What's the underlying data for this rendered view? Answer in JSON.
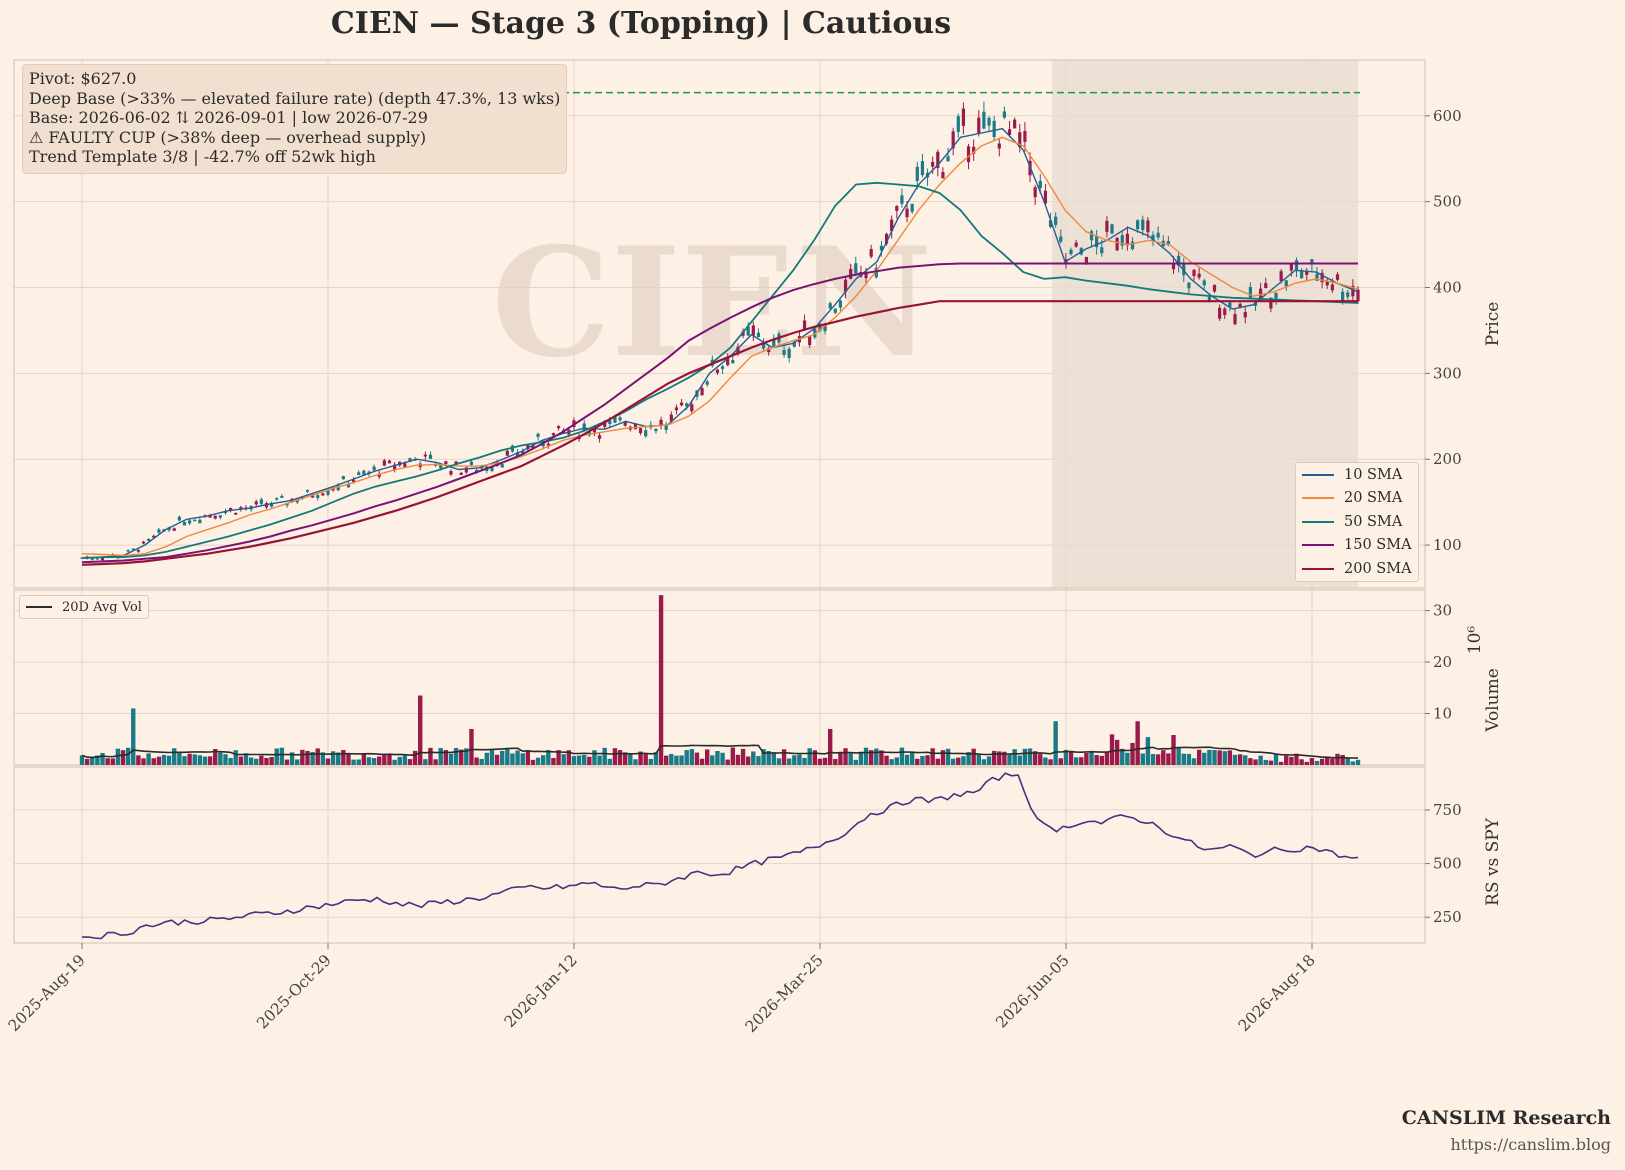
{
  "title": "CIEN  —  Stage 3 (Topping)  |  Cautious",
  "info_lines": [
    "Pivot: $627.0",
    "Deep Base (>33% — elevated failure rate)  (depth 47.3%, 13 wks)",
    "Base: 2026-06-02 ⇅ 2026-09-01  |  low 2026-07-29",
    "⚠ FAULTY CUP (>38% deep — overhead supply)",
    "Trend Template 3/8  |  -42.7% off 52wk high"
  ],
  "watermark": "CIEN",
  "footer": {
    "brand": "CANSLIM Research",
    "url": "https://canslim.blog"
  },
  "colors": {
    "background": "#fdf1e6",
    "up": "#1a7a86",
    "down": "#9a1b4a",
    "sma10": "#235e94",
    "sma20": "#f0883e",
    "sma50": "#137a7a",
    "sma150": "#7a1472",
    "sma200": "#9a1236",
    "pivot": "#1b9a4a",
    "rs": "#4a2f7c",
    "avgvol": "#2b2b2b",
    "base_shade": "#e9dccf"
  },
  "chart_data": [
    {
      "panel": "price",
      "type": "candlestick",
      "ylabel": "Price",
      "yticks": [
        100,
        200,
        300,
        400,
        500,
        600
      ],
      "ylim": [
        50,
        665
      ],
      "pivot": 627.0,
      "base_start": "2026-06-02",
      "base_end": "2026-09-01",
      "series": [
        {
          "name": "10 SMA",
          "values": [
            85,
            86,
            88,
            100,
            118,
            130,
            134,
            140,
            143,
            148,
            152,
            160,
            168,
            177,
            186,
            193,
            200,
            196,
            188,
            190,
            199,
            209,
            222,
            230,
            236,
            235,
            244,
            238,
            240,
            262,
            300,
            320,
            345,
            330,
            335,
            352,
            380,
            410,
            430,
            480,
            520,
            545,
            575,
            580,
            585,
            560,
            500,
            430,
            445,
            455,
            470,
            460,
            440,
            410,
            390,
            375,
            380,
            400,
            420,
            418,
            405,
            395
          ]
        },
        {
          "name": "20 SMA",
          "values": [
            90,
            89,
            88,
            90,
            98,
            110,
            118,
            126,
            135,
            142,
            150,
            158,
            166,
            173,
            181,
            188,
            193,
            194,
            192,
            192,
            196,
            203,
            212,
            222,
            228,
            232,
            236,
            238,
            240,
            250,
            268,
            295,
            320,
            330,
            338,
            345,
            365,
            390,
            420,
            455,
            490,
            520,
            545,
            565,
            575,
            565,
            530,
            490,
            465,
            455,
            450,
            455,
            450,
            430,
            415,
            400,
            390,
            395,
            405,
            410,
            405,
            398
          ]
        },
        {
          "name": "50 SMA",
          "values": [
            85,
            86,
            86,
            88,
            92,
            98,
            104,
            110,
            117,
            124,
            132,
            140,
            150,
            160,
            168,
            174,
            180,
            187,
            195,
            202,
            210,
            216,
            220,
            225,
            233,
            244,
            256,
            270,
            282,
            295,
            310,
            330,
            360,
            390,
            420,
            455,
            495,
            520,
            522,
            520,
            518,
            510,
            490,
            460,
            440,
            418,
            410,
            412,
            408,
            405,
            402,
            398,
            395,
            392,
            390,
            388,
            387,
            386,
            385,
            384,
            383,
            382
          ]
        },
        {
          "name": "150 SMA",
          "values": [
            80,
            81,
            82,
            84,
            86,
            90,
            94,
            99,
            104,
            110,
            117,
            123,
            130,
            137,
            145,
            152,
            160,
            168,
            177,
            186,
            195,
            205,
            218,
            232,
            248,
            264,
            282,
            300,
            318,
            338,
            352,
            365,
            377,
            388,
            397,
            404,
            410,
            415,
            419,
            423,
            425,
            427,
            428,
            428,
            428,
            428,
            428,
            428,
            428,
            428,
            428,
            428,
            428,
            428,
            428,
            428,
            428,
            428,
            428,
            428,
            428,
            428
          ]
        },
        {
          "name": "200 SMA",
          "values": [
            77,
            78,
            79,
            81,
            84,
            87,
            90,
            94,
            98,
            103,
            108,
            114,
            120,
            126,
            133,
            140,
            148,
            156,
            165,
            174,
            183,
            192,
            204,
            216,
            229,
            243,
            258,
            273,
            288,
            300,
            310,
            320,
            330,
            339,
            347,
            354,
            360,
            366,
            371,
            376,
            380,
            384,
            384,
            384,
            384,
            384,
            384,
            384,
            384,
            384,
            384,
            384,
            384,
            384,
            384,
            384,
            384,
            384,
            384,
            384,
            384,
            384
          ]
        }
      ]
    },
    {
      "panel": "volume",
      "type": "bar",
      "ylabel": "Volume",
      "unit": "10⁶",
      "yticks": [
        10,
        20,
        30
      ],
      "ylim": [
        0,
        34
      ],
      "legend": "20D Avg Vol",
      "spikes": [
        {
          "date": "2025-08-31",
          "value": 11
        },
        {
          "date": "2025-11-14",
          "value": 13.5
        },
        {
          "date": "2026-02-06",
          "value": 33
        },
        {
          "date": "2025-12-09",
          "value": 8.5
        },
        {
          "date": "2026-06-22",
          "value": 8.5
        }
      ]
    },
    {
      "panel": "rs",
      "type": "line",
      "ylabel": "RS vs SPY",
      "yticks": [
        250,
        500,
        750
      ],
      "ylim": [
        130,
        950
      ],
      "series": [
        {
          "values": [
            160,
            165,
            175,
            210,
            225,
            230,
            235,
            245,
            260,
            270,
            285,
            300,
            315,
            330,
            335,
            310,
            305,
            320,
            330,
            345,
            370,
            390,
            385,
            395,
            410,
            380,
            395,
            400,
            430,
            460,
            450,
            480,
            510,
            530,
            560,
            600,
            650,
            730,
            760,
            800,
            790,
            820,
            830,
            900,
            920,
            680,
            660,
            700,
            690,
            720,
            700,
            650,
            600,
            560,
            580,
            540,
            560,
            570,
            575,
            540,
            520
          ]
        }
      ]
    }
  ],
  "xticks": [
    "2025-Aug-19",
    "2025-Oct-29",
    "2026-Jan-12",
    "2026-Mar-25",
    "2026-Jun-05",
    "2026-Aug-18"
  ]
}
